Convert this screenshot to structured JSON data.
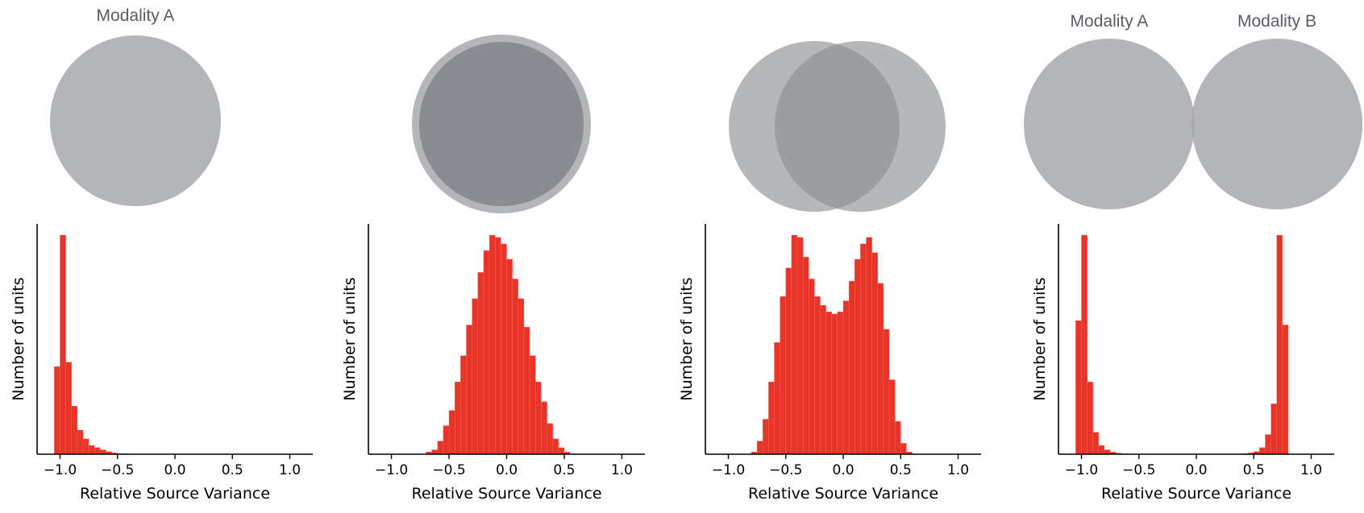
{
  "colors": {
    "bar": "#e9342a",
    "circle": "#a7a8ab",
    "overlap": "#7d8085",
    "label": "#5a5d63",
    "axis": "#000000"
  },
  "venns": [
    {
      "labels": [
        "Modality A"
      ]
    },
    {
      "labels": []
    },
    {
      "labels": []
    },
    {
      "labels": [
        "Modality A",
        "Modality B"
      ]
    }
  ],
  "chart_data": [
    {
      "type": "bar",
      "xlabel": "Relative Source Variance",
      "ylabel": "Number of units",
      "xlim": [
        -1.2,
        1.2
      ],
      "xticks": [
        -1.0,
        -0.5,
        0.0,
        0.5,
        1.0
      ],
      "xtick_labels": [
        "−1.0",
        "−0.5",
        "0.0",
        "0.5",
        "1.0"
      ],
      "bin_width": 0.05,
      "bin_start": -1.05,
      "values": [
        40,
        100,
        42,
        22,
        11,
        7,
        4,
        3,
        2,
        1.2,
        0.6,
        0.3,
        0.2,
        0.1,
        0.05
      ],
      "ylim": [
        0,
        105
      ]
    },
    {
      "type": "bar",
      "xlabel": "Relative Source Variance",
      "ylabel": "Number of units",
      "xlim": [
        -1.2,
        1.2
      ],
      "xticks": [
        -1.0,
        -0.5,
        0.0,
        0.5,
        1.0
      ],
      "xtick_labels": [
        "−1.0",
        "−0.5",
        "0.0",
        "0.5",
        "1.0"
      ],
      "bin_width": 0.05,
      "bin_start": -0.7,
      "values": [
        1,
        2,
        6,
        13,
        20,
        33,
        45,
        59,
        71,
        83,
        93,
        100,
        99,
        96,
        89,
        80,
        71,
        58,
        45,
        33,
        24,
        14,
        7,
        3,
        1
      ],
      "ylim": [
        0,
        105
      ]
    },
    {
      "type": "bar",
      "xlabel": "Relative Source Variance",
      "ylabel": "Number of units",
      "xlim": [
        -1.2,
        1.2
      ],
      "xticks": [
        -1.0,
        -0.5,
        0.0,
        0.5,
        1.0
      ],
      "xtick_labels": [
        "−1.0",
        "−0.5",
        "0.0",
        "0.5",
        "1.0"
      ],
      "bin_width": 0.05,
      "bin_start": -0.8,
      "values": [
        1,
        6,
        16,
        33,
        51,
        72,
        85,
        100,
        99,
        90,
        80,
        72,
        68,
        65,
        64,
        65,
        70,
        79,
        89,
        96,
        99,
        92,
        78,
        57,
        34,
        15,
        5,
        1
      ],
      "ylim": [
        0,
        105
      ]
    },
    {
      "type": "bar",
      "xlabel": "Relative Source Variance",
      "ylabel": "Number of units",
      "xlim": [
        -1.2,
        1.2
      ],
      "xticks": [
        -1.0,
        -0.5,
        0.0,
        0.5,
        1.0
      ],
      "xtick_labels": [
        "−1.0",
        "−0.5",
        "0.0",
        "0.5",
        "1.0"
      ],
      "bin_width": 0.05,
      "bin_start": -1.05,
      "values": [
        61,
        100,
        33,
        10,
        4,
        2,
        1,
        0.5,
        0.2,
        0,
        0,
        0,
        0,
        0,
        0,
        0,
        0,
        0,
        0,
        0,
        0,
        0,
        0,
        0,
        0,
        0,
        0,
        0,
        0,
        0.3,
        0.6,
        1.2,
        3,
        9,
        23,
        100,
        59
      ],
      "ylim": [
        0,
        105
      ]
    }
  ]
}
